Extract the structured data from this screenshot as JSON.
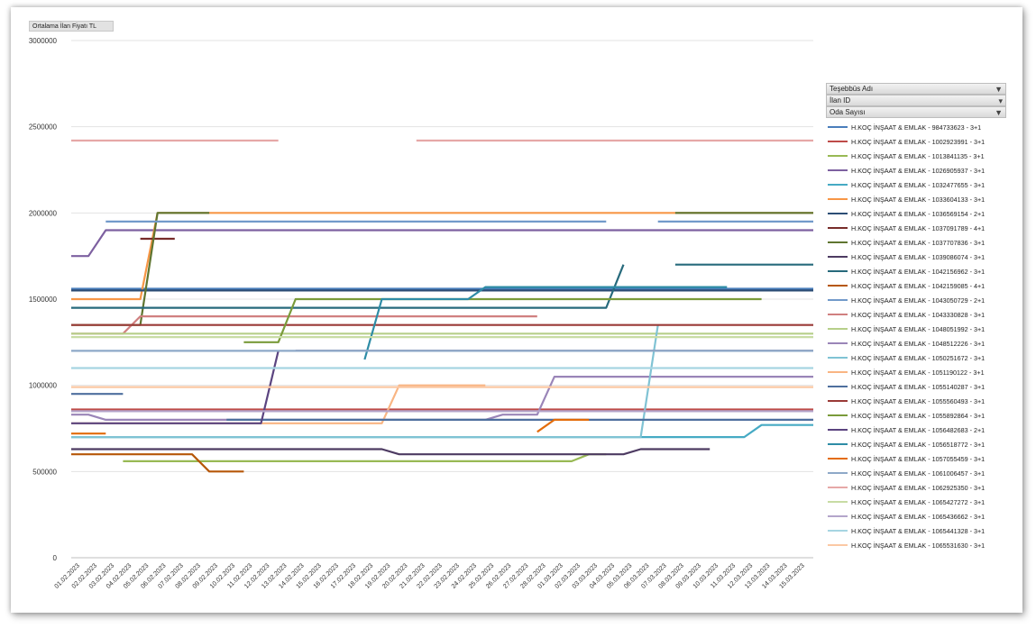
{
  "field_button": "Ortalama İlan Fiyatı TL",
  "filters": [
    {
      "label": "Teşebbüs Adı",
      "icon": "filter-icon"
    },
    {
      "label": "İlan ID",
      "icon": "dropdown-icon"
    },
    {
      "label": "Oda Sayısı",
      "icon": "filter-icon"
    }
  ],
  "chart_data": {
    "type": "line",
    "ylim": [
      0,
      3000000
    ],
    "y_ticks": [
      "0",
      "500000",
      "1000000",
      "1500000",
      "2000000",
      "2500000",
      "3000000"
    ],
    "x": [
      "01.02.2023",
      "02.02.2023",
      "03.02.2023",
      "04.02.2023",
      "05.02.2023",
      "06.02.2023",
      "07.02.2023",
      "08.02.2023",
      "09.02.2023",
      "10.02.2023",
      "11.02.2023",
      "12.02.2023",
      "13.02.2023",
      "14.02.2023",
      "15.02.2023",
      "16.02.2023",
      "17.02.2023",
      "18.02.2023",
      "19.02.2023",
      "20.02.2023",
      "21.02.2023",
      "22.02.2023",
      "23.02.2023",
      "24.02.2023",
      "25.02.2023",
      "26.02.2023",
      "27.02.2023",
      "28.02.2023",
      "01.03.2023",
      "02.03.2023",
      "03.03.2023",
      "04.03.2023",
      "05.03.2023",
      "06.03.2023",
      "07.03.2023",
      "08.03.2023",
      "09.03.2023",
      "10.03.2023",
      "11.03.2023",
      "12.03.2023",
      "13.03.2023",
      "14.03.2023",
      "15.03.2023"
    ],
    "legend_position": "right",
    "gridlines": true,
    "series": [
      {
        "name": "H.KOÇ İNŞAAT & EMLAK - 984733623 - 3+1",
        "color": "#4a7ebb",
        "segments": [
          [
            [
              0,
              1560000
            ],
            [
              43,
              1560000
            ]
          ]
        ]
      },
      {
        "name": "H.KOÇ İNŞAAT & EMLAK - 1002923991 - 3+1",
        "color": "#be4b48",
        "segments": [
          [
            [
              0,
              860000
            ],
            [
              43,
              860000
            ]
          ]
        ]
      },
      {
        "name": "H.KOÇ İNŞAAT & EMLAK - 1013841135 - 3+1",
        "color": "#98b954",
        "segments": [
          [
            [
              3,
              560000
            ],
            [
              29,
              560000
            ],
            [
              30,
              600000
            ],
            [
              31,
              600000
            ]
          ]
        ]
      },
      {
        "name": "H.KOÇ İNŞAAT & EMLAK - 1026905937 - 3+1",
        "color": "#7d60a0",
        "segments": [
          [
            [
              0,
              1750000
            ],
            [
              1,
              1750000
            ],
            [
              2,
              1900000
            ],
            [
              43,
              1900000
            ]
          ]
        ]
      },
      {
        "name": "H.KOÇ İNŞAAT & EMLAK - 1032477655 - 3+1",
        "color": "#46aac4",
        "segments": [
          [
            [
              0,
              700000
            ],
            [
              39,
              700000
            ],
            [
              40,
              770000
            ],
            [
              43,
              770000
            ]
          ]
        ]
      },
      {
        "name": "H.KOÇ İNŞAAT & EMLAK - 1033604133 - 3+1",
        "color": "#f79646",
        "segments": [
          [
            [
              0,
              1500000
            ],
            [
              4,
              1500000
            ],
            [
              5,
              2000000
            ],
            [
              43,
              2000000
            ]
          ]
        ]
      },
      {
        "name": "H.KOÇ İNŞAAT & EMLAK - 1036569154 - 2+1",
        "color": "#2c4d75",
        "segments": [
          [
            [
              0,
              1550000
            ],
            [
              43,
              1550000
            ]
          ]
        ]
      },
      {
        "name": "H.KOÇ İNŞAAT & EMLAK - 1037091789 - 4+1",
        "color": "#772c2a",
        "segments": [
          [
            [
              4,
              1850000
            ],
            [
              6,
              1850000
            ]
          ]
        ]
      },
      {
        "name": "H.KOÇ İNŞAAT & EMLAK - 1037707836 - 3+1",
        "color": "#5f7530",
        "segments": [
          [
            [
              0,
              1350000
            ],
            [
              4,
              1350000
            ],
            [
              5,
              2000000
            ],
            [
              8,
              2000000
            ]
          ],
          [
            [
              35,
              2000000
            ],
            [
              43,
              2000000
            ]
          ]
        ]
      },
      {
        "name": "H.KOÇ İNŞAAT & EMLAK - 1039086074 - 3+1",
        "color": "#4d3b62",
        "segments": [
          [
            [
              0,
              630000
            ],
            [
              18,
              630000
            ],
            [
              19,
              600000
            ],
            [
              32,
              600000
            ],
            [
              33,
              630000
            ],
            [
              37,
              630000
            ]
          ]
        ]
      },
      {
        "name": "H.KOÇ İNŞAAT & EMLAK - 1042156962 - 3+1",
        "color": "#276a7c",
        "segments": [
          [
            [
              0,
              1450000
            ],
            [
              31,
              1450000
            ],
            [
              32,
              1700000
            ]
          ],
          [
            [
              35,
              1700000
            ],
            [
              43,
              1700000
            ]
          ]
        ]
      },
      {
        "name": "H.KOÇ İNŞAAT & EMLAK - 1042159085 - 4+1",
        "color": "#b65708",
        "segments": [
          [
            [
              0,
              600000
            ],
            [
              7,
              600000
            ],
            [
              8,
              500000
            ],
            [
              10,
              500000
            ]
          ]
        ]
      },
      {
        "name": "H.KOÇ İNŞAAT & EMLAK - 1043050729 - 2+1",
        "color": "#729aca",
        "segments": [
          [
            [
              2,
              1950000
            ],
            [
              31,
              1950000
            ]
          ],
          [
            [
              34,
              1950000
            ],
            [
              43,
              1950000
            ]
          ]
        ]
      },
      {
        "name": "H.KOÇ İNŞAAT & EMLAK - 1043330828 - 3+1",
        "color": "#d08080",
        "segments": [
          [
            [
              0,
              1300000
            ],
            [
              3,
              1300000
            ],
            [
              4,
              1400000
            ],
            [
              27,
              1400000
            ]
          ]
        ]
      },
      {
        "name": "H.KOÇ İNŞAAT & EMLAK - 1048051992 - 3+1",
        "color": "#b7cf8a",
        "segments": [
          [
            [
              0,
              1300000
            ],
            [
              43,
              1300000
            ]
          ]
        ]
      },
      {
        "name": "H.KOÇ İNŞAAT & EMLAK - 1048512226 - 3+1",
        "color": "#9a85b8",
        "segments": [
          [
            [
              0,
              830000
            ],
            [
              1,
              830000
            ],
            [
              2,
              800000
            ],
            [
              24,
              800000
            ],
            [
              25,
              830000
            ],
            [
              27,
              830000
            ],
            [
              28,
              1050000
            ],
            [
              43,
              1050000
            ]
          ]
        ]
      },
      {
        "name": "H.KOÇ İNŞAAT & EMLAK - 1050251672 - 3+1",
        "color": "#80c3d4",
        "segments": [
          [
            [
              0,
              700000
            ],
            [
              33,
              700000
            ],
            [
              34,
              1350000
            ]
          ]
        ]
      },
      {
        "name": "H.KOÇ İNŞAAT & EMLAK - 1051190122 - 3+1",
        "color": "#f9b583",
        "segments": [
          [
            [
              0,
              780000
            ],
            [
              18,
              780000
            ],
            [
              19,
              1000000
            ],
            [
              24,
              1000000
            ]
          ]
        ]
      },
      {
        "name": "H.KOÇ İNŞAAT & EMLAK - 1055140287 - 3+1",
        "color": "#4e6f9e",
        "segments": [
          [
            [
              0,
              950000
            ],
            [
              3,
              950000
            ]
          ],
          [
            [
              9,
              800000
            ],
            [
              43,
              800000
            ]
          ]
        ]
      },
      {
        "name": "H.KOÇ İNŞAAT & EMLAK - 1055560493 - 3+1",
        "color": "#9a3a37",
        "segments": [
          [
            [
              0,
              1350000
            ],
            [
              43,
              1350000
            ]
          ]
        ]
      },
      {
        "name": "H.KOÇ İNŞAAT & EMLAK - 1055892864 - 3+1",
        "color": "#7a9b3a",
        "segments": [
          [
            [
              10,
              1250000
            ],
            [
              12,
              1250000
            ],
            [
              13,
              1500000
            ],
            [
              40,
              1500000
            ]
          ]
        ]
      },
      {
        "name": "H.KOÇ İNŞAAT & EMLAK - 1056482683 - 2+1",
        "color": "#5b4480",
        "segments": [
          [
            [
              0,
              780000
            ],
            [
              11,
              780000
            ],
            [
              12,
              1200000
            ]
          ],
          [
            [
              13,
              1200000
            ],
            [
              43,
              1200000
            ]
          ]
        ]
      },
      {
        "name": "H.KOÇ İNŞAAT & EMLAK - 1056518772 - 3+1",
        "color": "#2e8ca6",
        "segments": [
          [
            [
              17,
              1150000
            ],
            [
              18,
              1500000
            ],
            [
              23,
              1500000
            ],
            [
              24,
              1570000
            ],
            [
              38,
              1570000
            ]
          ]
        ]
      },
      {
        "name": "H.KOÇ İNŞAAT & EMLAK - 1057055459 - 3+1",
        "color": "#e36c0a",
        "segments": [
          [
            [
              0,
              720000
            ],
            [
              2,
              720000
            ]
          ],
          [
            [
              27,
              730000
            ],
            [
              28,
              800000
            ],
            [
              30,
              800000
            ]
          ]
        ]
      },
      {
        "name": "H.KOÇ İNŞAAT & EMLAK - 1061006457 - 3+1",
        "color": "#8ea9c8",
        "segments": [
          [
            [
              0,
              1200000
            ],
            [
              43,
              1200000
            ]
          ]
        ]
      },
      {
        "name": "H.KOÇ İNŞAAT & EMLAK - 1062925350 - 3+1",
        "color": "#e6a8a7",
        "segments": [
          [
            [
              0,
              2420000
            ],
            [
              12,
              2420000
            ]
          ],
          [
            [
              20,
              2420000
            ],
            [
              43,
              2420000
            ]
          ]
        ]
      },
      {
        "name": "H.KOÇ İNŞAAT & EMLAK - 1065427272 - 3+1",
        "color": "#c8dca4",
        "segments": [
          [
            [
              0,
              1280000
            ],
            [
              43,
              1280000
            ]
          ]
        ]
      },
      {
        "name": "H.KOÇ İNŞAAT & EMLAK - 1065436662 - 3+1",
        "color": "#b4a5cb",
        "segments": [
          [
            [
              0,
              850000
            ],
            [
              43,
              850000
            ]
          ]
        ]
      },
      {
        "name": "H.KOÇ İNŞAAT & EMLAK - 1065441328 - 3+1",
        "color": "#a6d5e2",
        "segments": [
          [
            [
              0,
              1100000
            ],
            [
              43,
              1100000
            ]
          ]
        ]
      },
      {
        "name": "H.KOÇ İNŞAAT & EMLAK - 1065531630 - 3+1",
        "color": "#fbc8a4",
        "segments": [
          [
            [
              0,
              990000
            ],
            [
              43,
              990000
            ]
          ]
        ]
      }
    ]
  }
}
